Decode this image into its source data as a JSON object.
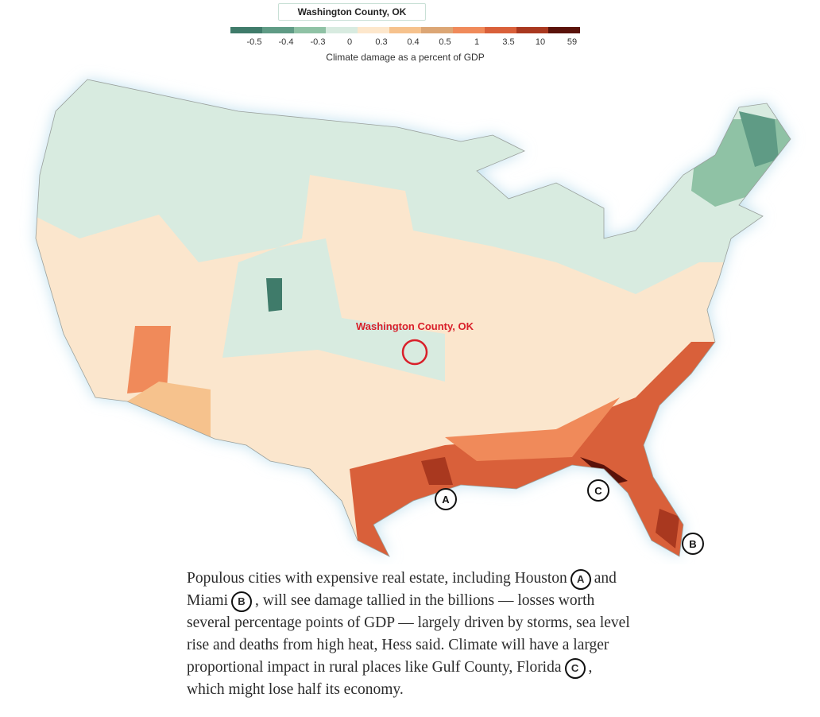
{
  "search": {
    "value": "Washington County, OK"
  },
  "legend": {
    "items": [
      {
        "label": "-0.5",
        "color": "#3f7b6a"
      },
      {
        "label": "-0.4",
        "color": "#5f9b85"
      },
      {
        "label": "-0.3",
        "color": "#8fc2a5"
      },
      {
        "label": "0",
        "color": "#d8ebe0"
      },
      {
        "label": "0.3",
        "color": "#fde7cc"
      },
      {
        "label": "0.4",
        "color": "#f6c28d"
      },
      {
        "label": "0.5",
        "color": "#dca675"
      },
      {
        "label": "1",
        "color": "#f08a5a"
      },
      {
        "label": "3.5",
        "color": "#d9603a"
      },
      {
        "label": "10",
        "color": "#a9381f"
      },
      {
        "label": "59",
        "color": "#5a120a"
      }
    ],
    "caption": "Climate damage as a percent of GDP"
  },
  "map": {
    "highlight_label": "Washington County, OK",
    "markers": [
      "A",
      "C",
      "B"
    ]
  },
  "paragraph": [
    {
      "text": "Populous cities with expensive real estate, including Houston"
    },
    {
      "marker": "A"
    },
    {
      "text": "and Miami"
    },
    {
      "marker": "B"
    },
    {
      "text": ", will see damage tallied in the billions — losses worth several percentage points of GDP — largely driven by storms, sea level rise and deaths from high heat, Hess said. Climate will have a larger proportional impact in rural places like Gulf County, Florida"
    },
    {
      "marker": "C"
    },
    {
      "text": ", which might lose half its economy."
    }
  ]
}
